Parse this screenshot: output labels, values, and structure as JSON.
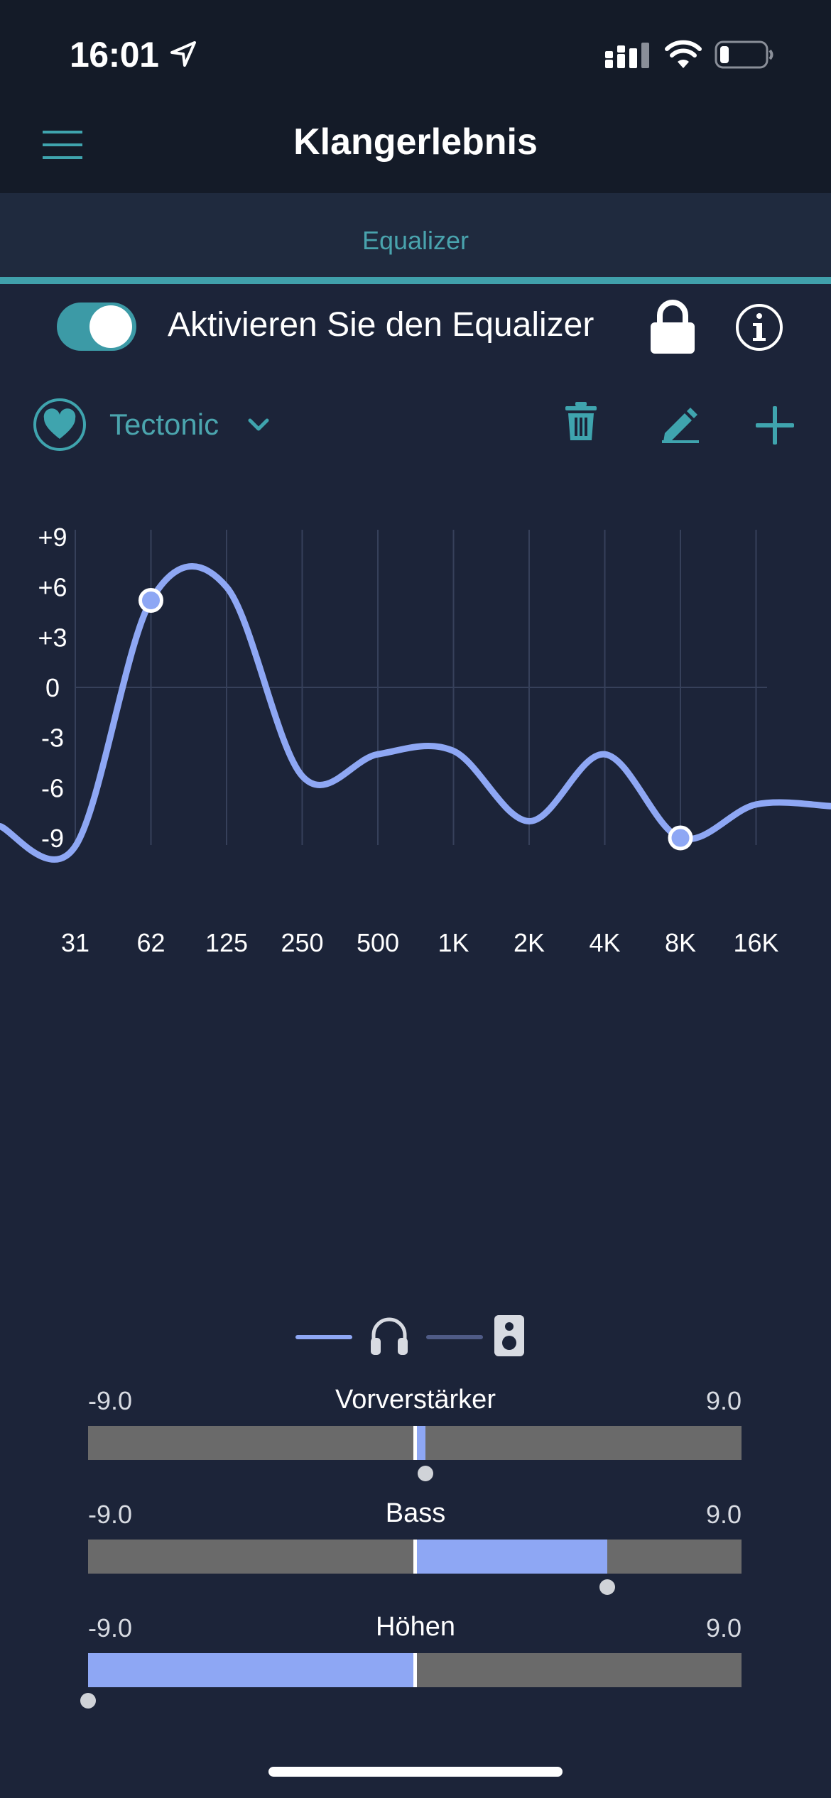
{
  "status_bar": {
    "time": "16:01"
  },
  "nav": {
    "title": "Klangerlebnis"
  },
  "tabs": [
    {
      "label": "Equalizer",
      "active": true
    }
  ],
  "equalizer": {
    "toggle_label": "Aktivieren Sie den Equalizer",
    "enabled": true
  },
  "preset": {
    "name": "Tectonic",
    "favorite": true
  },
  "chart_data": {
    "type": "line",
    "x_categories": [
      "31",
      "62",
      "125",
      "250",
      "500",
      "1K",
      "2K",
      "4K",
      "8K",
      "16K"
    ],
    "y_tick_labels": [
      "+9",
      "+6",
      "+3",
      "0",
      "-3",
      "-6",
      "-9"
    ],
    "ylim": [
      -9,
      9
    ],
    "grid": true,
    "series": [
      {
        "values": [
          -9.5,
          5.2,
          6.0,
          -5.3,
          -4.0,
          -3.8,
          -8.0,
          -4.0,
          -9.0,
          -7.0
        ]
      }
    ],
    "highlighted_points": [
      {
        "x": "62",
        "y": 5.2
      },
      {
        "x": "8K",
        "y": -9.0
      }
    ],
    "colors": {
      "line": "#8ea7f4",
      "grid": "#36405a"
    }
  },
  "legend": {
    "headphones_color": "#8ea7f4",
    "speaker_color": "#4f5b86",
    "icons": [
      "headphones-icon",
      "speaker-icon"
    ]
  },
  "sliders": [
    {
      "title": "Vorverstärker",
      "min_label": "-9.0",
      "max_label": "9.0",
      "value": 0.3
    },
    {
      "title": "Bass",
      "min_label": "-9.0",
      "max_label": "9.0",
      "value": 5.3
    },
    {
      "title": "Höhen",
      "min_label": "-9.0",
      "max_label": "9.0",
      "value": -9.0
    }
  ],
  "slider_range": [
    -9,
    9
  ]
}
